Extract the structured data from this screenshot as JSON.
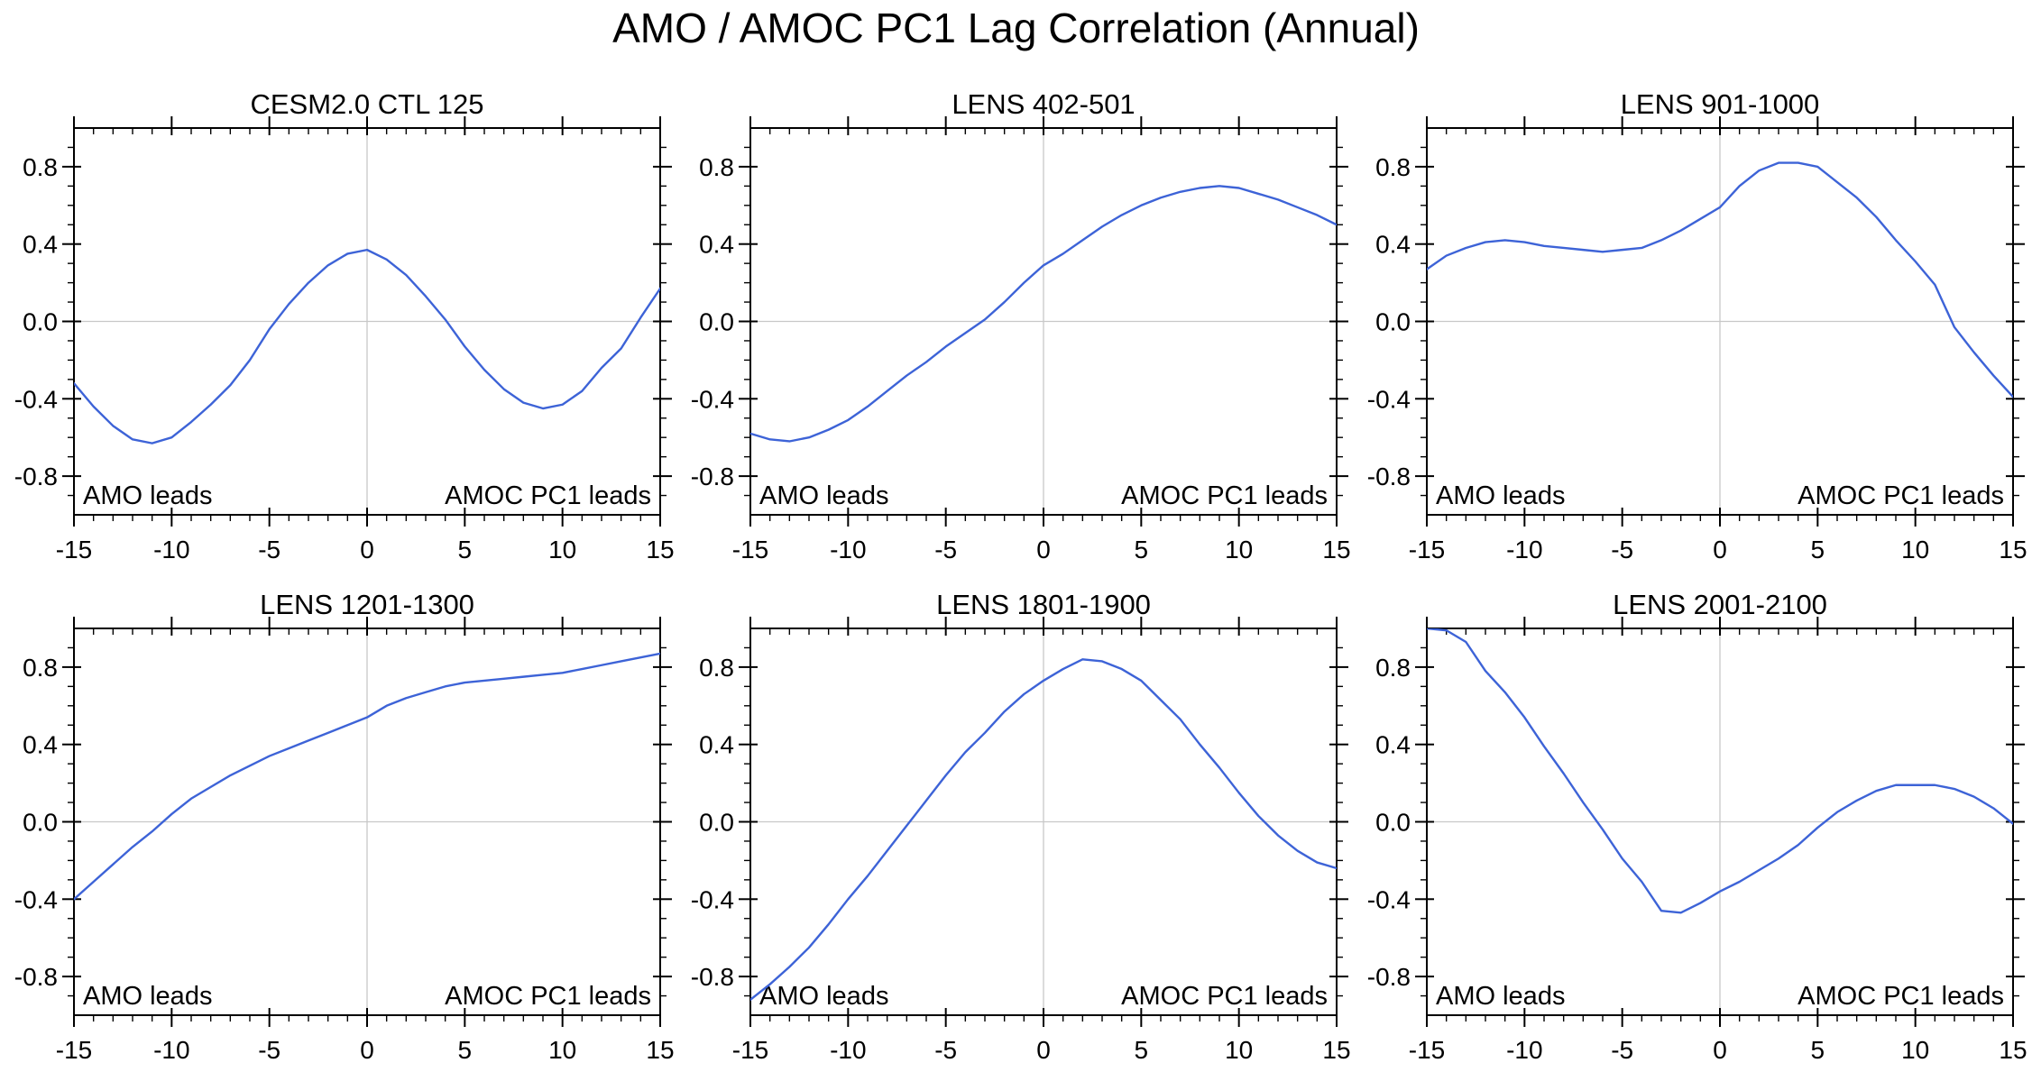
{
  "title": "AMO / AMOC PC1 Lag Correlation (Annual)",
  "colors": {
    "curve": "#3d63d7",
    "zero_line": "#c8c8c8",
    "axis": "#000000",
    "background": "#ffffff",
    "text": "#000000"
  },
  "panel_annotations": {
    "left": "AMO leads",
    "right": "AMOC PC1 leads"
  },
  "chart_data": {
    "type": "line",
    "title": "AMO / AMOC PC1 Lag Correlation (Annual)",
    "xlabel": "",
    "ylabel": "",
    "xlim": [
      -15,
      15
    ],
    "ylim": [
      -1,
      1
    ],
    "xticks": [
      -15,
      -10,
      -5,
      0,
      5,
      10,
      15
    ],
    "xtick_labels": [
      "-15",
      "-10",
      "-5",
      "0",
      "5",
      "10",
      "15"
    ],
    "yticks": [
      -0.8,
      -0.4,
      0.0,
      0.4,
      0.8
    ],
    "ytick_labels": [
      "-0.8",
      "-0.4",
      "0.0",
      "0.4",
      "0.8"
    ],
    "x_minor_step": 1,
    "y_minor_step": 0.1,
    "grid": "zero reference lines only (horizontal y=0 and vertical x=0, light gray)",
    "legend_position": "none",
    "x": [
      -15,
      -14,
      -13,
      -12,
      -11,
      -10,
      -9,
      -8,
      -7,
      -6,
      -5,
      -4,
      -3,
      -2,
      -1,
      0,
      1,
      2,
      3,
      4,
      5,
      6,
      7,
      8,
      9,
      10,
      11,
      12,
      13,
      14,
      15
    ],
    "panels": [
      {
        "title": "CESM2.0 CTL 125",
        "values": [
          -0.32,
          -0.44,
          -0.54,
          -0.61,
          -0.63,
          -0.6,
          -0.52,
          -0.43,
          -0.33,
          -0.2,
          -0.04,
          0.09,
          0.2,
          0.29,
          0.35,
          0.37,
          0.32,
          0.24,
          0.13,
          0.01,
          -0.13,
          -0.25,
          -0.35,
          -0.42,
          -0.45,
          -0.43,
          -0.36,
          -0.24,
          -0.14,
          0.02,
          0.17
        ]
      },
      {
        "title": "LENS 402-501",
        "values": [
          -0.58,
          -0.61,
          -0.62,
          -0.6,
          -0.56,
          -0.51,
          -0.44,
          -0.36,
          -0.28,
          -0.21,
          -0.13,
          -0.06,
          0.01,
          0.1,
          0.2,
          0.29,
          0.35,
          0.42,
          0.49,
          0.55,
          0.6,
          0.64,
          0.67,
          0.69,
          0.7,
          0.69,
          0.66,
          0.63,
          0.59,
          0.55,
          0.5
        ]
      },
      {
        "title": "LENS 901-1000",
        "values": [
          0.27,
          0.34,
          0.38,
          0.41,
          0.42,
          0.41,
          0.39,
          0.38,
          0.37,
          0.36,
          0.37,
          0.38,
          0.42,
          0.47,
          0.53,
          0.59,
          0.7,
          0.78,
          0.82,
          0.82,
          0.8,
          0.72,
          0.64,
          0.54,
          0.42,
          0.31,
          0.19,
          -0.03,
          -0.16,
          -0.28,
          -0.39
        ]
      },
      {
        "title": "LENS 1201-1300",
        "values": [
          -0.4,
          -0.31,
          -0.22,
          -0.13,
          -0.05,
          0.04,
          0.12,
          0.18,
          0.24,
          0.29,
          0.34,
          0.38,
          0.42,
          0.46,
          0.5,
          0.54,
          0.6,
          0.64,
          0.67,
          0.7,
          0.72,
          0.73,
          0.74,
          0.75,
          0.76,
          0.77,
          0.79,
          0.81,
          0.83,
          0.85,
          0.87
        ]
      },
      {
        "title": "LENS 1801-1900",
        "values": [
          -0.92,
          -0.84,
          -0.75,
          -0.65,
          -0.53,
          -0.4,
          -0.28,
          -0.15,
          -0.02,
          0.11,
          0.24,
          0.36,
          0.46,
          0.57,
          0.66,
          0.73,
          0.79,
          0.84,
          0.83,
          0.79,
          0.73,
          0.63,
          0.53,
          0.4,
          0.28,
          0.15,
          0.03,
          -0.07,
          -0.15,
          -0.21,
          -0.24
        ]
      },
      {
        "title": "LENS 2001-2100",
        "values": [
          1.0,
          0.99,
          0.93,
          0.78,
          0.67,
          0.54,
          0.39,
          0.25,
          0.1,
          -0.04,
          -0.19,
          -0.31,
          -0.46,
          -0.47,
          -0.42,
          -0.36,
          -0.31,
          -0.25,
          -0.19,
          -0.12,
          -0.03,
          0.05,
          0.11,
          0.16,
          0.19,
          0.19,
          0.19,
          0.17,
          0.13,
          0.07,
          -0.01
        ]
      }
    ]
  }
}
